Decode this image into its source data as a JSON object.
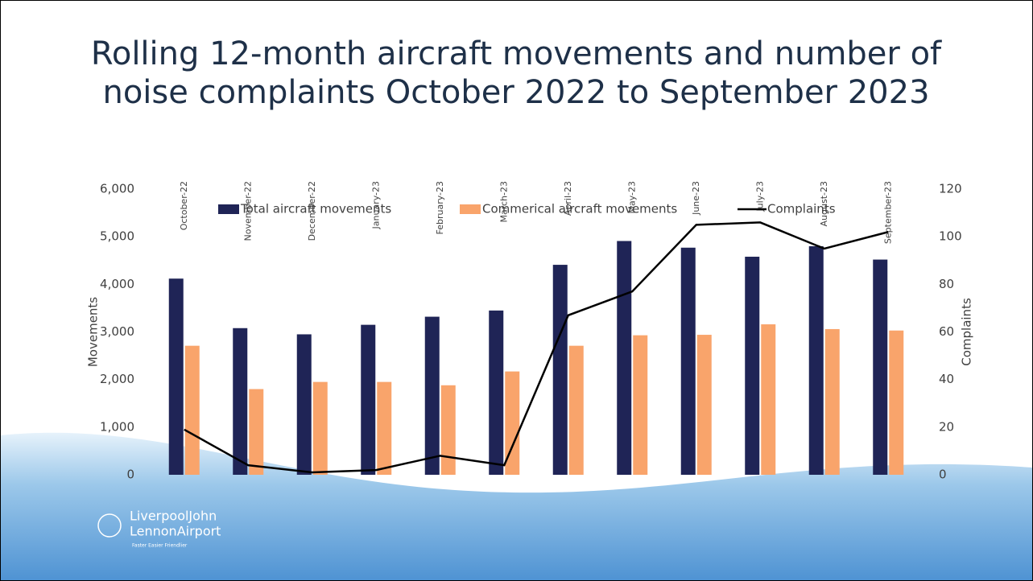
{
  "chart_data": {
    "type": "bar_line",
    "title": "Rolling 12-month aircraft movements and number of noise complaints October 2022 to September 2023",
    "categories": [
      "October-22",
      "November-22",
      "December-22",
      "January-23",
      "February-23",
      "March-23",
      "April-23",
      "May-23",
      "June-23",
      "July-23",
      "August-23",
      "September-23"
    ],
    "series": [
      {
        "name": "Total aircraft movements",
        "color": "#1f2456",
        "kind": "bar",
        "values": [
          4120,
          3080,
          2950,
          3150,
          3320,
          3450,
          4410,
          4910,
          4770,
          4580,
          4800,
          4520
        ]
      },
      {
        "name": "Commerical aircraft movements",
        "color": "#f9a46b",
        "kind": "bar",
        "values": [
          2710,
          1800,
          1950,
          1950,
          1880,
          2170,
          2710,
          2930,
          2940,
          3160,
          3060,
          3030
        ]
      },
      {
        "name": "Complaints",
        "color": "#000000",
        "kind": "line",
        "axis": "y2",
        "values": [
          19,
          4,
          1,
          2,
          8,
          4,
          67,
          77,
          105,
          106,
          95,
          102
        ]
      }
    ],
    "ylabel": "Movements",
    "y2label": "Complaints",
    "ylim": [
      0,
      6000
    ],
    "yticks": [
      0,
      {
        "value": 1000,
        "label": "1,000"
      },
      {
        "value": 2000,
        "label": "2,000"
      },
      {
        "value": 3000,
        "label": "3,000"
      },
      {
        "value": 4000,
        "label": "4,000"
      },
      {
        "value": 5000,
        "label": "5,000"
      },
      {
        "value": 6000,
        "label": "6,000"
      }
    ],
    "y2lim": [
      0,
      120
    ],
    "y2ticks": [
      0,
      20,
      40,
      60,
      80,
      100,
      120
    ],
    "legend": "top",
    "grid": false
  },
  "logo": {
    "name_line1": "LiverpoolJohn",
    "name_line2": "LennonAirport",
    "tagline": "Faster Easier Friendlier"
  }
}
